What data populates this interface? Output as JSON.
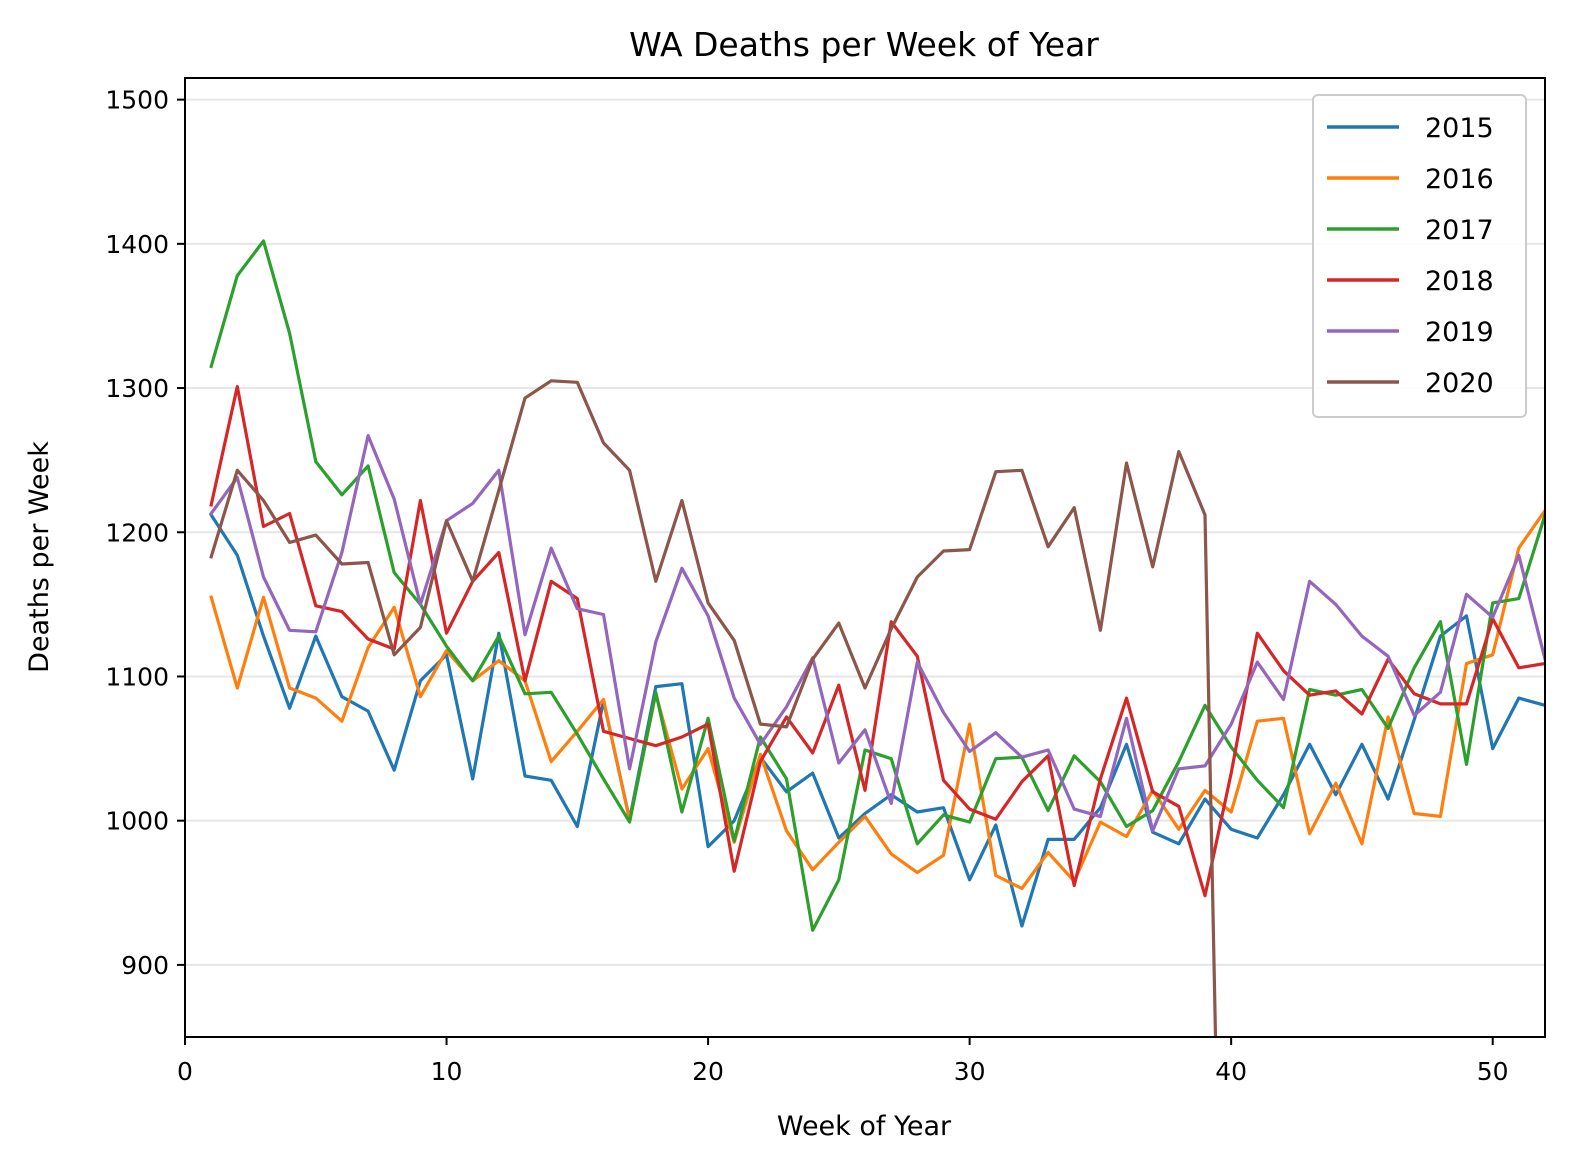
{
  "chart_data": {
    "type": "line",
    "title": "WA Deaths per Week of Year",
    "xlabel": "Week of Year",
    "ylabel": "Deaths per Week",
    "xlim": [
      0,
      52
    ],
    "ylim": [
      850,
      1515
    ],
    "xticks": [
      0,
      10,
      20,
      30,
      40,
      50
    ],
    "yticks": [
      900,
      1000,
      1100,
      1200,
      1300,
      1400,
      1500
    ],
    "grid": "horizontal",
    "legend_position": "top-right",
    "series": [
      {
        "name": "2015",
        "color": "#1f77b4",
        "x": [
          1,
          2,
          3,
          4,
          5,
          6,
          7,
          8,
          9,
          10,
          11,
          12,
          13,
          14,
          15,
          16,
          17,
          18,
          19,
          20,
          21,
          22,
          23,
          24,
          25,
          26,
          27,
          28,
          29,
          30,
          31,
          32,
          33,
          34,
          35,
          36,
          37,
          38,
          39,
          40,
          41,
          42,
          43,
          44,
          45,
          46,
          47,
          48,
          49,
          50,
          51,
          52
        ],
        "values": [
          1212,
          1184,
          1128,
          1078,
          1128,
          1086,
          1076,
          1035,
          1097,
          1115,
          1029,
          1130,
          1031,
          1028,
          996,
          1083,
          1001,
          1093,
          1095,
          982,
          1000,
          1044,
          1020,
          1033,
          988,
          1005,
          1018,
          1006,
          1009,
          959,
          997,
          927,
          987,
          987,
          1009,
          1053,
          992,
          984,
          1015,
          994,
          988,
          1018,
          1053,
          1018,
          1053,
          1015,
          1070,
          1128,
          1142,
          1050,
          1085,
          1080
        ]
      },
      {
        "name": "2016",
        "color": "#ff7f0e",
        "x": [
          1,
          2,
          3,
          4,
          5,
          6,
          7,
          8,
          9,
          10,
          11,
          12,
          13,
          14,
          15,
          16,
          17,
          18,
          19,
          20,
          21,
          22,
          23,
          24,
          25,
          26,
          27,
          28,
          29,
          30,
          31,
          32,
          33,
          34,
          35,
          36,
          37,
          38,
          39,
          40,
          41,
          42,
          43,
          44,
          45,
          46,
          47,
          48,
          49,
          50,
          51,
          52
        ],
        "values": [
          1155,
          1092,
          1155,
          1092,
          1085,
          1069,
          1120,
          1148,
          1086,
          1118,
          1097,
          1111,
          1097,
          1041,
          1062,
          1084,
          1000,
          1088,
          1022,
          1050,
          985,
          1046,
          993,
          966,
          985,
          1003,
          977,
          964,
          976,
          1067,
          962,
          953,
          978,
          958,
          999,
          989,
          1021,
          994,
          1021,
          1006,
          1069,
          1071,
          991,
          1026,
          984,
          1072,
          1005,
          1003,
          1109,
          1115,
          1189,
          1215
        ]
      },
      {
        "name": "2017",
        "color": "#2ca02c",
        "x": [
          1,
          2,
          3,
          4,
          5,
          6,
          7,
          8,
          9,
          10,
          11,
          12,
          13,
          14,
          15,
          16,
          17,
          18,
          19,
          20,
          21,
          22,
          23,
          24,
          25,
          26,
          27,
          28,
          29,
          30,
          31,
          32,
          33,
          34,
          35,
          36,
          37,
          38,
          39,
          40,
          41,
          42,
          43,
          44,
          45,
          46,
          47,
          48,
          49,
          50,
          51,
          52
        ],
        "values": [
          1315,
          1378,
          1402,
          1338,
          1249,
          1226,
          1246,
          1172,
          1150,
          1121,
          1097,
          1128,
          1088,
          1089,
          1060,
          1029,
          999,
          1089,
          1006,
          1071,
          986,
          1058,
          1029,
          924,
          959,
          1049,
          1043,
          984,
          1004,
          999,
          1043,
          1044,
          1007,
          1045,
          1027,
          996,
          1007,
          1041,
          1080,
          1051,
          1028,
          1009,
          1091,
          1087,
          1091,
          1064,
          1106,
          1138,
          1039,
          1151,
          1154,
          1212
        ]
      },
      {
        "name": "2018",
        "color": "#d62728",
        "x": [
          1,
          2,
          3,
          4,
          5,
          6,
          7,
          8,
          9,
          10,
          11,
          12,
          13,
          14,
          15,
          16,
          17,
          18,
          19,
          20,
          21,
          22,
          23,
          24,
          25,
          26,
          27,
          28,
          29,
          30,
          31,
          32,
          33,
          34,
          35,
          36,
          37,
          38,
          39,
          40,
          41,
          42,
          43,
          44,
          45,
          46,
          47,
          48,
          49,
          50,
          51,
          52
        ],
        "values": [
          1219,
          1301,
          1204,
          1213,
          1149,
          1145,
          1126,
          1119,
          1222,
          1130,
          1166,
          1186,
          1097,
          1166,
          1154,
          1062,
          1057,
          1052,
          1058,
          1067,
          965,
          1041,
          1072,
          1047,
          1094,
          1021,
          1138,
          1114,
          1028,
          1008,
          1001,
          1027,
          1045,
          955,
          1029,
          1085,
          1020,
          1010,
          948,
          1033,
          1130,
          1104,
          1087,
          1090,
          1074,
          1112,
          1088,
          1081,
          1081,
          1140,
          1106,
          1109
        ]
      },
      {
        "name": "2019",
        "color": "#9467bd",
        "x": [
          1,
          2,
          3,
          4,
          5,
          6,
          7,
          8,
          9,
          10,
          11,
          12,
          13,
          14,
          15,
          16,
          17,
          18,
          19,
          20,
          21,
          22,
          23,
          24,
          25,
          26,
          27,
          28,
          29,
          30,
          31,
          32,
          33,
          34,
          35,
          36,
          37,
          38,
          39,
          40,
          41,
          42,
          43,
          44,
          45,
          46,
          47,
          48,
          49,
          50,
          51,
          52
        ],
        "values": [
          1213,
          1238,
          1169,
          1132,
          1131,
          1186,
          1267,
          1223,
          1150,
          1208,
          1220,
          1243,
          1129,
          1189,
          1147,
          1143,
          1036,
          1124,
          1175,
          1142,
          1085,
          1053,
          1079,
          1113,
          1040,
          1063,
          1012,
          1110,
          1075,
          1048,
          1061,
          1044,
          1049,
          1008,
          1003,
          1071,
          993,
          1036,
          1038,
          1067,
          1110,
          1084,
          1166,
          1150,
          1128,
          1114,
          1073,
          1089,
          1157,
          1141,
          1184,
          1112
        ]
      },
      {
        "name": "2020",
        "color": "#8c564b",
        "x": [
          1,
          2,
          3,
          4,
          5,
          6,
          7,
          8,
          9,
          10,
          11,
          12,
          13,
          14,
          15,
          16,
          17,
          18,
          19,
          20,
          21,
          22,
          23,
          24,
          25,
          26,
          27,
          28,
          29,
          30,
          31,
          32,
          33,
          34,
          35,
          36,
          37,
          38,
          39,
          39.4
        ],
        "values": [
          1183,
          1243,
          1222,
          1193,
          1198,
          1178,
          1179,
          1115,
          1134,
          1208,
          1166,
          1229,
          1293,
          1305,
          1304,
          1262,
          1243,
          1166,
          1222,
          1151,
          1125,
          1067,
          1065,
          1112,
          1137,
          1092,
          1133,
          1169,
          1187,
          1188,
          1242,
          1243,
          1190,
          1217,
          1132,
          1248,
          1176,
          1256,
          1212,
          850
        ]
      }
    ]
  }
}
